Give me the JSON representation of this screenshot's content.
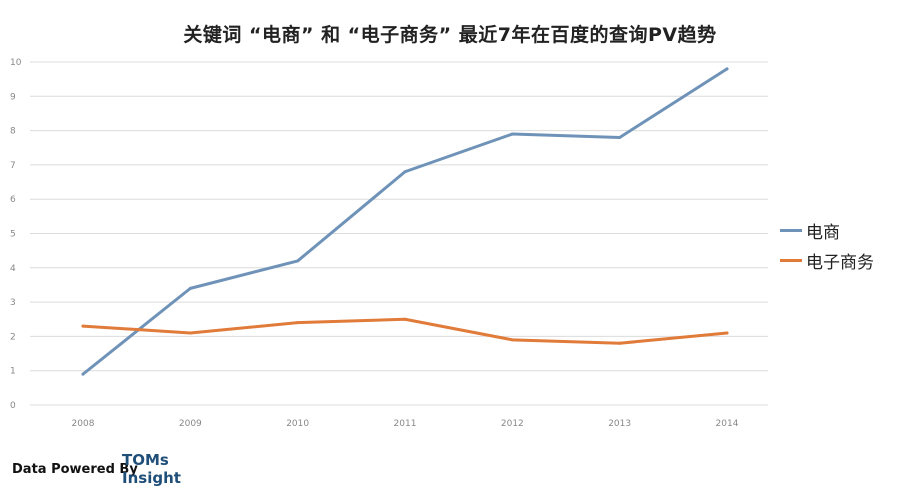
{
  "chart_data": {
    "type": "line",
    "title": "关键词 “电商” 和 “电子商务” 最近7年在百度的查询PV趋势",
    "categories": [
      "2008",
      "2009",
      "2010",
      "2011",
      "2012",
      "2013",
      "2014"
    ],
    "ylim": [
      0,
      10
    ],
    "y_ticks": [
      "0",
      "1",
      "2",
      "3",
      "4",
      "5",
      "6",
      "7",
      "8",
      "9",
      "10"
    ],
    "grid": true,
    "legend_position": "right",
    "series": [
      {
        "name": "电商",
        "color": "#6f93b8",
        "values": [
          0.9,
          3.4,
          4.2,
          6.8,
          7.9,
          7.8,
          9.8
        ]
      },
      {
        "name": "电子商务",
        "color": "#e07b39",
        "values": [
          2.3,
          2.1,
          2.4,
          2.5,
          1.9,
          1.8,
          2.1
        ]
      }
    ]
  },
  "footer": {
    "powered_by": "Data Powered By",
    "brand_line1": "TOMs",
    "brand_line2": "Insight"
  }
}
